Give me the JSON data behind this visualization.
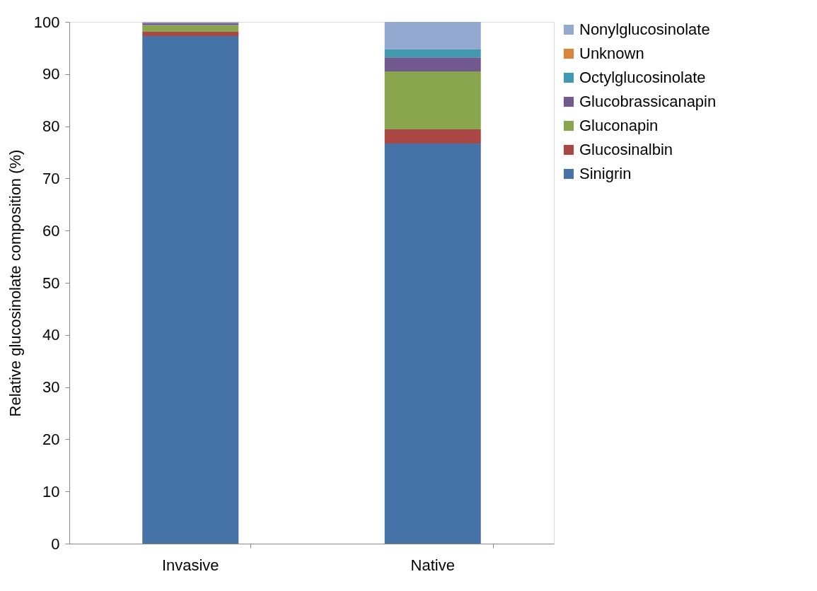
{
  "chart_data": {
    "type": "bar",
    "stacked": true,
    "ylabel": "Relative glucosinolate composition (%)",
    "categories": [
      "Invasive",
      "Native"
    ],
    "ylim": [
      0,
      100
    ],
    "yticks": [
      0,
      10,
      20,
      30,
      40,
      50,
      60,
      70,
      80,
      90,
      100
    ],
    "grid": false,
    "legend": "right",
    "series": [
      {
        "name": "Sinigrin",
        "color": "#4572a7",
        "values": [
          97.3,
          76.7
        ]
      },
      {
        "name": "Glucosinalbin",
        "color": "#aa4643",
        "values": [
          0.8,
          2.7
        ]
      },
      {
        "name": "Gluconapin",
        "color": "#89a54e",
        "values": [
          1.3,
          11.1
        ]
      },
      {
        "name": "Glucobrassicanapin",
        "color": "#71588f",
        "values": [
          0.4,
          2.7
        ]
      },
      {
        "name": "Octylglucosinolate",
        "color": "#4198af",
        "values": [
          null,
          1.5
        ]
      },
      {
        "name": "Unknown",
        "color": "#db843d",
        "values": [
          0,
          0
        ]
      },
      {
        "name": "Nonylglucosinolate",
        "color": "#93a9cf",
        "values": [
          0.2,
          5.3
        ]
      }
    ]
  }
}
